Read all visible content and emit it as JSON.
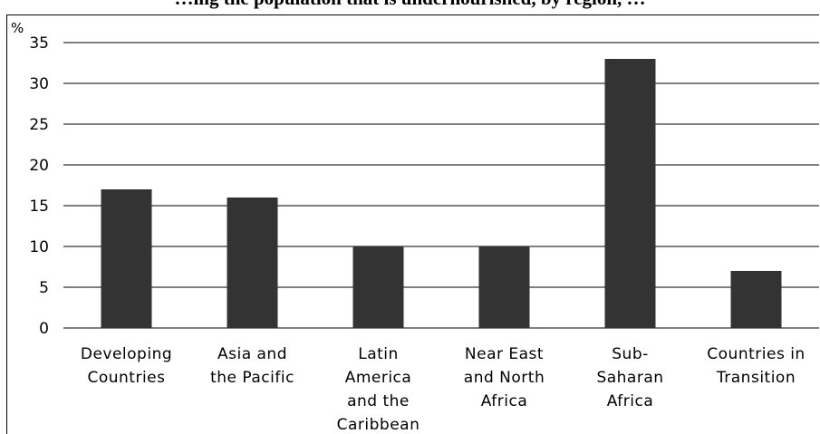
{
  "chart_data": {
    "type": "bar",
    "title": "…ing the population that is undernourished, by region, …",
    "ylabel": "%",
    "xlabel": "",
    "ylim": [
      0,
      35
    ],
    "yticks": [
      0,
      5,
      10,
      15,
      20,
      25,
      30,
      35
    ],
    "grid": true,
    "legend": "none",
    "categories": [
      "Developing Countries",
      "Asia and the Pacific",
      "Latin America and the Caribbean",
      "Near East and North Africa",
      "Sub-Saharan Africa",
      "Countries in Transition"
    ],
    "category_lines": [
      [
        "Developing",
        "Countries"
      ],
      [
        "Asia and",
        "the Pacific"
      ],
      [
        "Latin",
        "America",
        "and the",
        "Caribbean"
      ],
      [
        "Near East",
        "and North",
        "Africa"
      ],
      [
        "Sub-",
        "Saharan",
        "Africa"
      ],
      [
        "Countries in",
        "Transition"
      ]
    ],
    "values": [
      17,
      16,
      10,
      10,
      33,
      7
    ],
    "bar_color": "#333333",
    "grid_color": "#000000"
  }
}
